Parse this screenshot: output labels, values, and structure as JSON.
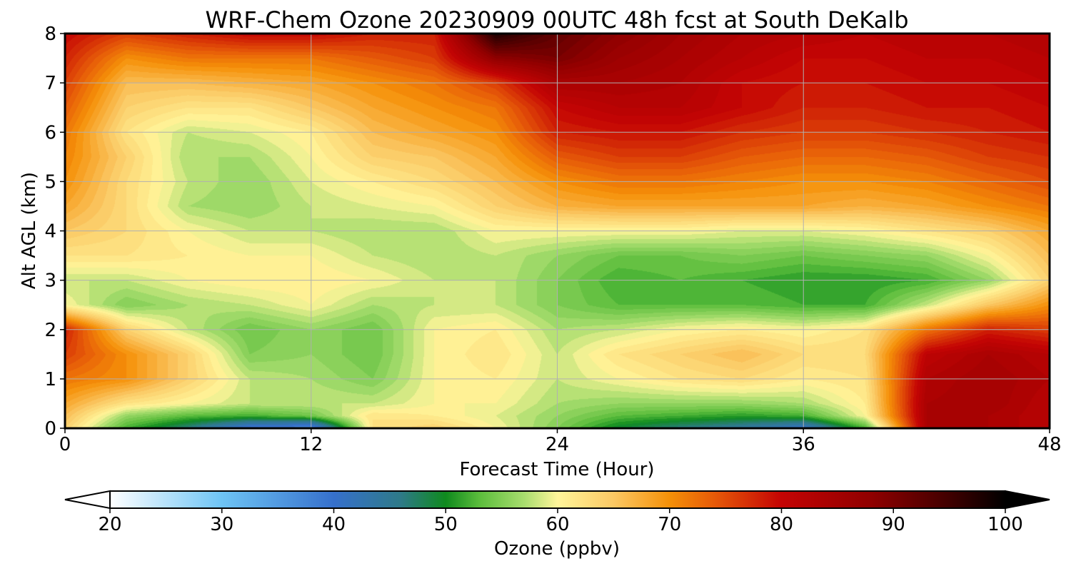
{
  "chart_data": {
    "type": "heatmap",
    "title": "WRF-Chem Ozone  20230909 00UTC 48h fcst at South DeKalb",
    "xlabel": "Forecast Time (Hour)",
    "ylabel": "Alt AGL (km)",
    "xlim": [
      0,
      48
    ],
    "ylim": [
      0,
      8
    ],
    "x_ticks": [
      0,
      12,
      24,
      36,
      48
    ],
    "y_ticks": [
      0,
      1,
      2,
      3,
      4,
      5,
      6,
      7,
      8
    ],
    "grid": true,
    "variable": "Ozone",
    "units": "ppbv",
    "x": [
      0,
      3,
      6,
      9,
      12,
      15,
      18,
      21,
      24,
      27,
      30,
      33,
      36,
      39,
      42,
      45,
      48
    ],
    "y": [
      0,
      0.25,
      0.5,
      1,
      1.5,
      2,
      2.5,
      3,
      3.5,
      4,
      4.5,
      5,
      5.5,
      6,
      6.5,
      7,
      7.5,
      8
    ],
    "z": [
      [
        64,
        52,
        46,
        38,
        36,
        62,
        64,
        60,
        55,
        49,
        46,
        44,
        40,
        52,
        84,
        84,
        82
      ],
      [
        66,
        56,
        53,
        52,
        54,
        62,
        61,
        59,
        56,
        53,
        52,
        51,
        52,
        60,
        84,
        84,
        82
      ],
      [
        68,
        62,
        60,
        58,
        58,
        58,
        60,
        60,
        57,
        56,
        56,
        56,
        57,
        61,
        84,
        85,
        82
      ],
      [
        72,
        70,
        64,
        58,
        57,
        55,
        60,
        61,
        58,
        60,
        62,
        63,
        61,
        62,
        83,
        85,
        83
      ],
      [
        76,
        70,
        64,
        55,
        56,
        54,
        60,
        62,
        58,
        62,
        64,
        66,
        63,
        63,
        81,
        84,
        82
      ],
      [
        78,
        64,
        58,
        54,
        56,
        54,
        60,
        61,
        57,
        58,
        60,
        61,
        60,
        62,
        72,
        78,
        76
      ],
      [
        60,
        55,
        57,
        58,
        60,
        57,
        58,
        58,
        55,
        53,
        53,
        53,
        52,
        52,
        58,
        65,
        70
      ],
      [
        58,
        58,
        60,
        61,
        61,
        60,
        58,
        58,
        55,
        52,
        53,
        52,
        51,
        51,
        52,
        56,
        64
      ],
      [
        62,
        62,
        61,
        60,
        60,
        58,
        57,
        58,
        56,
        54,
        54,
        55,
        54,
        55,
        56,
        60,
        66
      ],
      [
        65,
        63,
        60,
        58,
        58,
        57,
        57,
        60,
        60,
        60,
        60,
        59,
        59,
        60,
        62,
        64,
        68
      ],
      [
        68,
        63,
        57,
        56,
        58,
        59,
        60,
        64,
        67,
        68,
        68,
        68,
        68,
        67,
        68,
        70,
        72
      ],
      [
        70,
        63,
        58,
        56,
        59,
        61,
        63,
        66,
        70,
        72,
        72,
        71,
        70,
        70,
        71,
        73,
        75
      ],
      [
        71,
        64,
        57,
        57,
        60,
        64,
        65,
        68,
        74,
        76,
        76,
        74,
        73,
        73,
        74,
        76,
        77
      ],
      [
        72,
        62,
        58,
        59,
        61,
        66,
        68,
        70,
        78,
        79,
        79,
        77,
        76,
        76,
        77,
        78,
        79
      ],
      [
        74,
        64,
        62,
        62,
        65,
        68,
        70,
        72,
        80,
        82,
        82,
        80,
        78,
        78,
        79,
        79,
        80
      ],
      [
        76,
        66,
        66,
        67,
        68,
        70,
        72,
        76,
        84,
        84,
        83,
        80,
        79,
        79,
        80,
        80,
        81
      ],
      [
        78,
        70,
        72,
        72,
        72,
        74,
        76,
        88,
        90,
        86,
        84,
        82,
        80,
        80,
        81,
        81,
        82
      ],
      [
        80,
        76,
        78,
        80,
        80,
        78,
        78,
        98,
        92,
        88,
        85,
        83,
        82,
        81,
        82,
        82,
        83
      ]
    ],
    "colorbar": {
      "label": "Ozone  (ppbv)",
      "min": 20,
      "max": 100,
      "ticks": [
        20,
        30,
        40,
        50,
        60,
        70,
        80,
        90,
        100
      ],
      "extend": "both",
      "stops": [
        [
          20,
          "#ffffff"
        ],
        [
          30,
          "#6ec4f5"
        ],
        [
          40,
          "#3670cc"
        ],
        [
          46,
          "#2e7a88"
        ],
        [
          50,
          "#0f8a1e"
        ],
        [
          53,
          "#5bbd3c"
        ],
        [
          57,
          "#a8dd6e"
        ],
        [
          60,
          "#fff59a"
        ],
        [
          65,
          "#fbc864"
        ],
        [
          70,
          "#f59008"
        ],
        [
          74,
          "#e65a08"
        ],
        [
          80,
          "#c40404"
        ],
        [
          88,
          "#900000"
        ],
        [
          95,
          "#400000"
        ],
        [
          100,
          "#000000"
        ]
      ]
    }
  }
}
